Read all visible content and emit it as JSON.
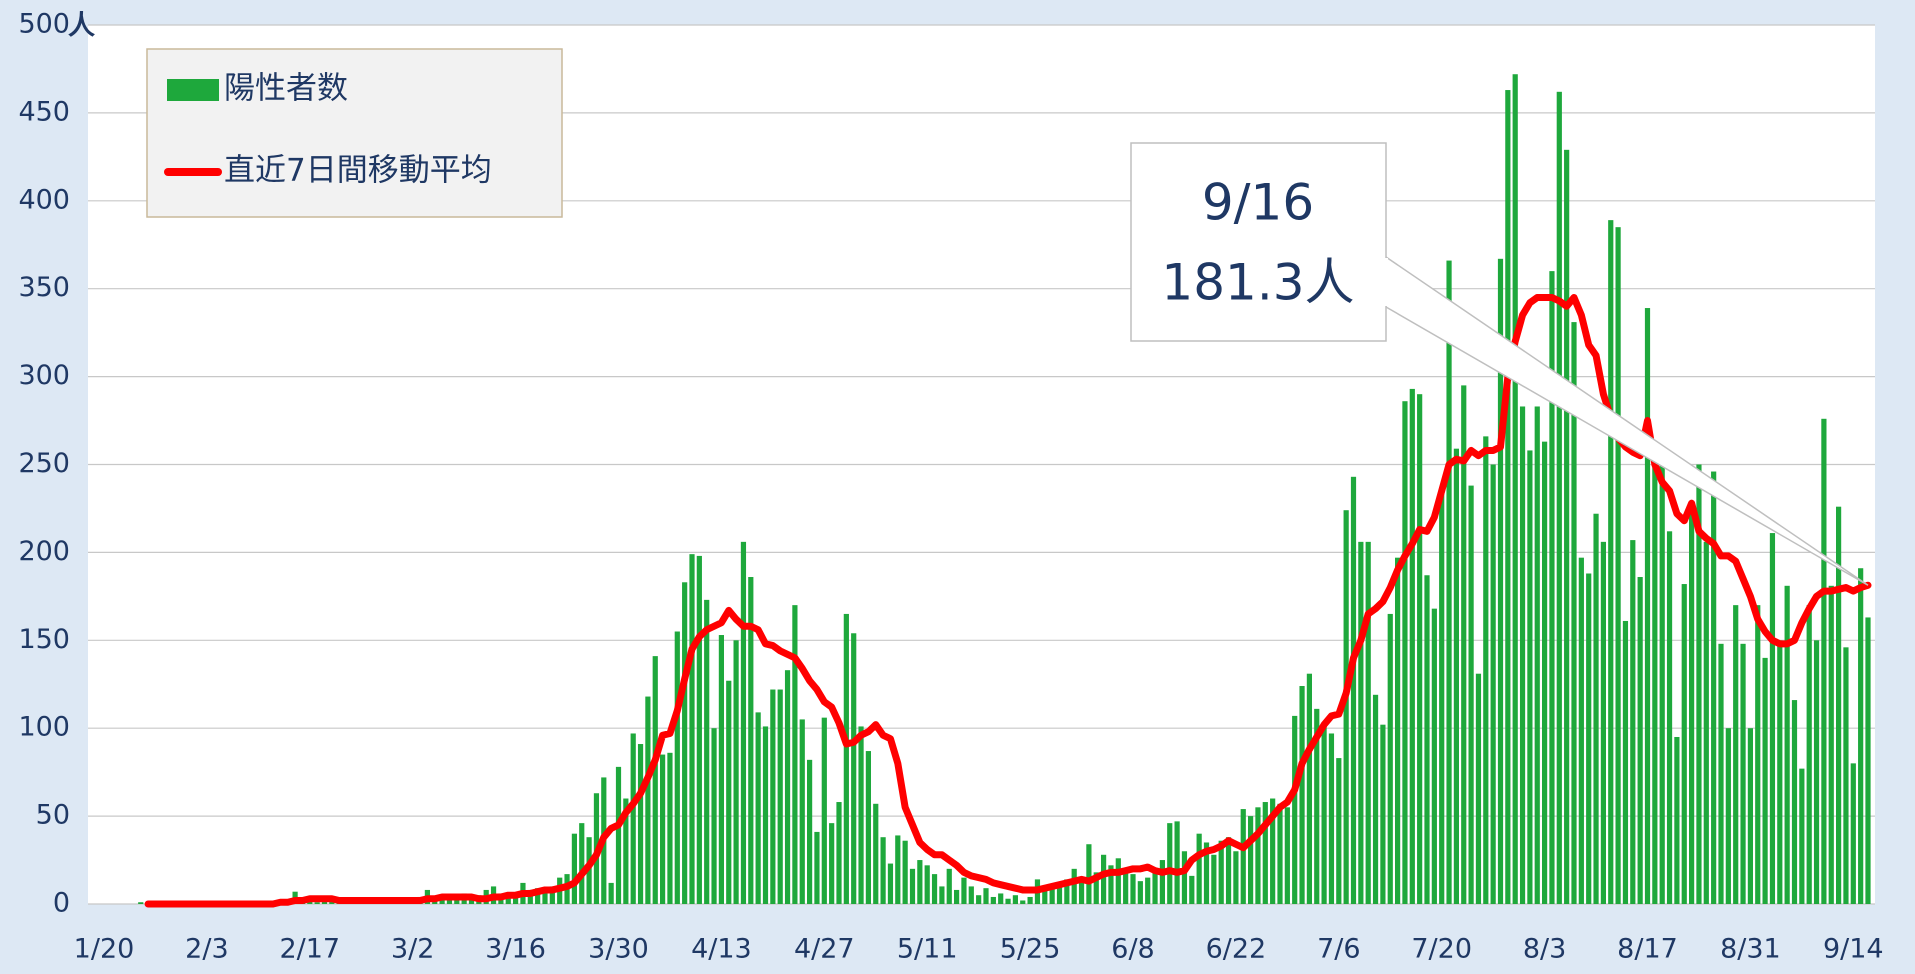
{
  "chart_data": {
    "type": "bar_line",
    "categories": [
      "1/20",
      null,
      null,
      null,
      null,
      null,
      null,
      null,
      null,
      null,
      null,
      null,
      null,
      null,
      "2/3",
      null,
      null,
      null,
      null,
      null,
      null,
      null,
      null,
      null,
      null,
      null,
      null,
      null,
      "2/17",
      null,
      null,
      null,
      null,
      null,
      null,
      null,
      null,
      null,
      null,
      null,
      null,
      null,
      "3/2",
      null,
      null,
      null,
      null,
      null,
      null,
      null,
      null,
      null,
      null,
      null,
      null,
      null,
      "3/16",
      null,
      null,
      null,
      null,
      null,
      null,
      null,
      null,
      null,
      null,
      null,
      null,
      null,
      "3/30",
      null,
      null,
      null,
      null,
      null,
      null,
      null,
      null,
      null,
      null,
      null,
      null,
      null,
      "4/13",
      null,
      null,
      null,
      null,
      null,
      null,
      null,
      null,
      null,
      null,
      null,
      null,
      null,
      "4/27",
      null,
      null,
      null,
      null,
      null,
      null,
      null,
      null,
      null,
      null,
      null,
      null,
      null,
      "5/11",
      null,
      null,
      null,
      null,
      null,
      null,
      null,
      null,
      null,
      null,
      null,
      null,
      null,
      "5/25",
      null,
      null,
      null,
      null,
      null,
      null,
      null,
      null,
      null,
      null,
      null,
      null,
      null,
      "6/8",
      null,
      null,
      null,
      null,
      null,
      null,
      null,
      null,
      null,
      null,
      null,
      null,
      null,
      "6/22",
      null,
      null,
      null,
      null,
      null,
      null,
      null,
      null,
      null,
      null,
      null,
      null,
      null,
      "7/6",
      null,
      null,
      null,
      null,
      null,
      null,
      null,
      null,
      null,
      null,
      null,
      null,
      null,
      "7/20",
      null,
      null,
      null,
      null,
      null,
      null,
      null,
      null,
      null,
      null,
      null,
      null,
      null,
      "8/3",
      null,
      null,
      null,
      null,
      null,
      null,
      null,
      null,
      null,
      null,
      null,
      null,
      null,
      "8/17",
      null,
      null,
      null,
      null,
      null,
      null,
      null,
      null,
      null,
      null,
      null,
      null,
      null,
      "8/31",
      null,
      null,
      null,
      null,
      null,
      null,
      null,
      null,
      null,
      null,
      null,
      null,
      null,
      "9/14",
      null,
      null
    ],
    "series": [
      {
        "name": "陽性者数",
        "type": "bar",
        "color": "#1ea83c",
        "values": [
          0,
          0,
          0,
          0,
          0,
          1,
          0,
          1,
          0,
          0,
          0,
          1,
          0,
          0,
          1,
          0,
          0,
          1,
          0,
          1,
          0,
          0,
          1,
          1,
          2,
          1,
          7,
          3,
          2,
          1,
          3,
          2,
          1,
          2,
          3,
          1,
          2,
          1,
          3,
          2,
          1,
          2,
          3,
          4,
          8,
          3,
          4,
          5,
          3,
          6,
          4,
          5,
          8,
          10,
          6,
          5,
          5,
          12,
          8,
          9,
          7,
          10,
          15,
          17,
          40,
          46,
          38,
          63,
          72,
          12,
          78,
          60,
          97,
          91,
          118,
          141,
          85,
          86,
          155,
          183,
          199,
          198,
          173,
          100,
          153,
          127,
          150,
          206,
          186,
          109,
          101,
          122,
          122,
          133,
          170,
          105,
          82,
          41,
          106,
          46,
          58,
          165,
          154,
          101,
          87,
          57,
          38,
          23,
          39,
          36,
          20,
          25,
          22,
          17,
          10,
          20,
          8,
          15,
          10,
          5,
          9,
          4,
          6,
          3,
          5,
          2,
          4,
          14,
          8,
          10,
          12,
          14,
          20,
          12,
          34,
          18,
          28,
          22,
          26,
          20,
          17,
          13,
          15,
          20,
          25,
          46,
          47,
          30,
          16,
          40,
          35,
          28,
          36,
          38,
          30,
          54,
          50,
          55,
          58,
          60,
          57,
          55,
          107,
          124,
          131,
          111,
          102,
          97,
          83,
          224,
          243,
          206,
          206,
          119,
          102,
          165,
          197,
          286,
          293,
          290,
          187,
          168,
          237,
          366,
          259,
          295,
          238,
          131,
          266,
          250,
          367,
          463,
          472,
          283,
          258,
          283,
          263,
          360,
          462,
          429,
          331,
          197,
          188,
          222,
          206,
          389,
          385,
          161,
          207,
          186,
          339,
          255,
          255,
          212,
          95,
          182,
          229,
          250,
          206,
          246,
          148,
          100,
          170,
          148,
          100,
          170,
          140,
          211,
          150,
          181,
          116,
          77,
          170,
          150,
          276,
          181,
          226,
          146,
          80,
          191,
          163
        ]
      },
      {
        "name": "直近7日間移動平均",
        "type": "line",
        "color": "#ff0000",
        "values": [
          null,
          null,
          null,
          null,
          null,
          null,
          0,
          0,
          0,
          0,
          0,
          0,
          0,
          0,
          0,
          0,
          0,
          0,
          0,
          0,
          0,
          0,
          0,
          0,
          1,
          1,
          2,
          2,
          3,
          3,
          3,
          3,
          2,
          2,
          2,
          2,
          2,
          2,
          2,
          2,
          2,
          2,
          2,
          2,
          3,
          3,
          4,
          4,
          4,
          4,
          4,
          3,
          3,
          4,
          4,
          5,
          5,
          6,
          6,
          7,
          8,
          8,
          9,
          10,
          12,
          17,
          22,
          28,
          38,
          43,
          45,
          52,
          57,
          63,
          72,
          82,
          96,
          97,
          110,
          128,
          145,
          152,
          156,
          158,
          160,
          167,
          162,
          158,
          158,
          156,
          148,
          147,
          144,
          142,
          140,
          134,
          127,
          122,
          115,
          112,
          103,
          91,
          92,
          96,
          98,
          102,
          96,
          94,
          80,
          55,
          45,
          35,
          31,
          28,
          28,
          25,
          22,
          18,
          16,
          15,
          14,
          12,
          11,
          10,
          9,
          8,
          8,
          8,
          9,
          10,
          11,
          12,
          13,
          14,
          13,
          15,
          17,
          18,
          18,
          19,
          20,
          20,
          21,
          19,
          18,
          19,
          18,
          19,
          25,
          28,
          30,
          31,
          33,
          36,
          34,
          32,
          36,
          40,
          45,
          50,
          55,
          58,
          65,
          80,
          88,
          95,
          102,
          107,
          108,
          120,
          140,
          150,
          165,
          168,
          172,
          180,
          190,
          198,
          205,
          213,
          212,
          220,
          235,
          250,
          253,
          252,
          258,
          255,
          258,
          258,
          260,
          300,
          320,
          335,
          342,
          345,
          345,
          345,
          343,
          340,
          345,
          335,
          318,
          312,
          290,
          277,
          265,
          260,
          257,
          255,
          275,
          250,
          240,
          235,
          222,
          218,
          228,
          212,
          208,
          205,
          198,
          198,
          195,
          185,
          175,
          162,
          155,
          150,
          148,
          148,
          150,
          160,
          168,
          175,
          178,
          178,
          179,
          180,
          178,
          180,
          181.3
        ]
      }
    ],
    "ylim": [
      0,
      500
    ],
    "yticks": [
      0,
      50,
      100,
      150,
      200,
      250,
      300,
      350,
      400,
      450,
      500
    ],
    "y_unit": "人",
    "grid": true,
    "legend": "top-left",
    "annotation": {
      "date": "9/16",
      "label": "181.3人"
    }
  }
}
